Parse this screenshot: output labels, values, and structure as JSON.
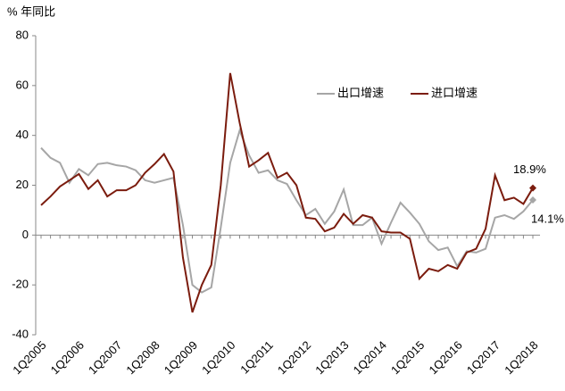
{
  "chart_data": {
    "type": "line",
    "unit_label": "% 年同比",
    "categories": [
      "1Q2005",
      null,
      null,
      null,
      "1Q2006",
      null,
      null,
      null,
      "1Q2007",
      null,
      null,
      null,
      "1Q2008",
      null,
      null,
      null,
      "1Q2009",
      null,
      null,
      null,
      "1Q2010",
      null,
      null,
      null,
      "1Q2011",
      null,
      null,
      null,
      "1Q2012",
      null,
      null,
      null,
      "1Q2013",
      null,
      null,
      null,
      "1Q2014",
      null,
      null,
      null,
      "1Q2015",
      null,
      null,
      null,
      "1Q2016",
      null,
      null,
      null,
      "1Q2017",
      null,
      null,
      null,
      "1Q2018"
    ],
    "series": [
      {
        "name": "出口增速",
        "color": "#a6a6a6",
        "values": [
          35,
          31,
          29,
          21,
          26.5,
          24,
          28.5,
          29,
          28,
          27.5,
          26,
          22,
          21,
          22,
          23,
          4,
          -20,
          -23,
          -21,
          3,
          29,
          42,
          32,
          25,
          26,
          22,
          20.5,
          14,
          8,
          10.5,
          4.5,
          9.5,
          18.3,
          4,
          4,
          7,
          -3.5,
          5,
          13,
          9,
          4.5,
          -2.5,
          -6,
          -5,
          -12.5,
          -6.5,
          -7,
          -5.5,
          7,
          8,
          6.5,
          9.5,
          14.1
        ],
        "value_labels": [
          null,
          null,
          null,
          null,
          null,
          null,
          null,
          null,
          null,
          null,
          null,
          null,
          null,
          null,
          null,
          null,
          null,
          null,
          null,
          null,
          null,
          null,
          null,
          null,
          null,
          null,
          null,
          null,
          null,
          null,
          null,
          null,
          null,
          null,
          null,
          null,
          null,
          null,
          null,
          null,
          null,
          null,
          null,
          null,
          null,
          null,
          null,
          null,
          null,
          null,
          null,
          null,
          "14.1%"
        ]
      },
      {
        "name": "进口增速",
        "color": "#7b1c0e",
        "values": [
          12,
          15.5,
          19.5,
          22,
          24.5,
          18.5,
          22,
          15.5,
          18,
          18,
          20,
          25,
          28.5,
          32.5,
          25.5,
          -9,
          -31,
          -20,
          -12,
          20,
          65,
          45,
          27.5,
          30,
          33,
          23,
          25,
          20,
          7,
          6.5,
          1.5,
          3,
          8.5,
          4.5,
          8,
          7,
          1.5,
          1,
          1,
          -1.5,
          -17.5,
          -13.5,
          -14.5,
          -12,
          -13.5,
          -7,
          -5.5,
          2.5,
          24,
          14,
          15,
          12.5,
          18.9
        ],
        "value_labels": [
          null,
          null,
          null,
          null,
          null,
          null,
          null,
          null,
          null,
          null,
          null,
          null,
          null,
          null,
          null,
          null,
          null,
          null,
          null,
          null,
          null,
          null,
          null,
          null,
          null,
          null,
          null,
          null,
          null,
          null,
          null,
          null,
          null,
          null,
          null,
          null,
          null,
          null,
          null,
          null,
          null,
          null,
          null,
          null,
          null,
          null,
          null,
          null,
          null,
          null,
          null,
          null,
          "18.9%"
        ]
      }
    ],
    "ylim": [
      -40,
      80
    ],
    "yticks": [
      -40,
      -20,
      0,
      20,
      40,
      60,
      80
    ],
    "grid": false
  }
}
